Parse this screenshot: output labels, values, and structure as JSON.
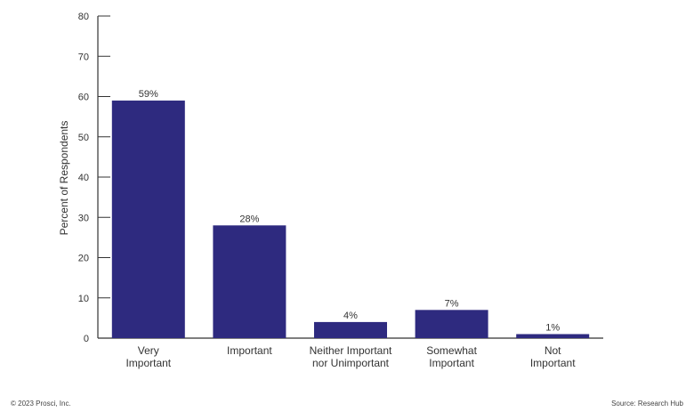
{
  "chart_data": {
    "type": "bar",
    "categories": [
      [
        "Very",
        "Important"
      ],
      [
        "Important"
      ],
      [
        "Neither Important",
        "nor Unimportant"
      ],
      [
        "Somewhat",
        "Important"
      ],
      [
        "Not",
        "Important"
      ]
    ],
    "values": [
      59,
      28,
      4,
      7,
      1
    ],
    "data_labels": [
      "59%",
      "28%",
      "4%",
      "7%",
      "1%"
    ],
    "title": "",
    "xlabel": "",
    "ylabel": "Percent of Respondents",
    "ylim": [
      0,
      80
    ],
    "yticks": [
      0,
      10,
      20,
      30,
      40,
      50,
      60,
      70,
      80
    ],
    "bar_color": "#2e2a7f",
    "grid": false,
    "legend": "none"
  },
  "footer": {
    "left": "© 2023 Prosci, Inc.",
    "right": "Source: Research Hub"
  }
}
